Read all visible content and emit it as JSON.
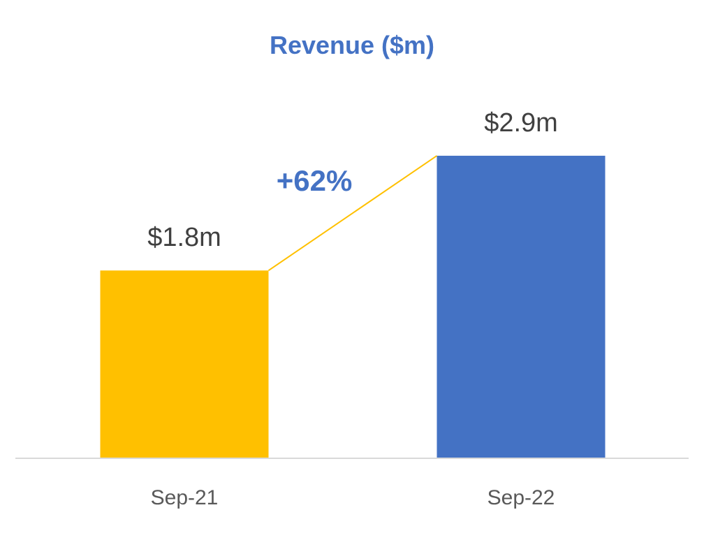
{
  "chart_data": {
    "type": "bar",
    "title": "Revenue ($m)",
    "categories": [
      "Sep-21",
      "Sep-22"
    ],
    "values": [
      1.8,
      2.9
    ],
    "data_labels": [
      "$1.8m",
      "$2.9m"
    ],
    "bar_colors": [
      "#FFC000",
      "#4472C4"
    ],
    "annotation": {
      "text": "+62%",
      "color": "#4472C4",
      "connector_color": "#FFC000"
    },
    "xlabel": "",
    "ylabel": "",
    "ylim": [
      0,
      3.75
    ],
    "grid": false,
    "legend": "none"
  },
  "colors": {
    "title": "#4472C4",
    "data_label": "#404040",
    "tick_label": "#595959",
    "axis_line": "#D9D9D9"
  }
}
